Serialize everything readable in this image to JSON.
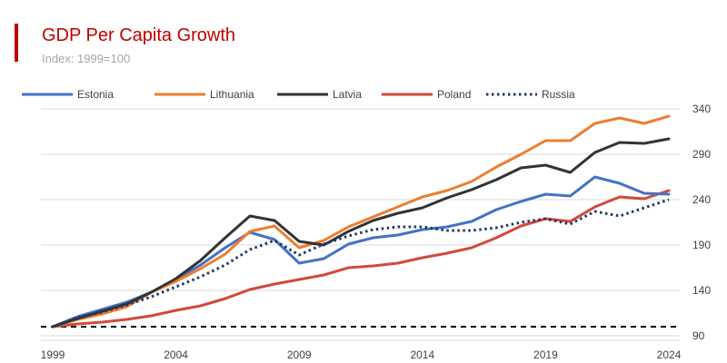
{
  "header": {
    "title": "GDP Per Capita Growth",
    "subtitle": "Index: 1999=100",
    "accent_color": "#c00000"
  },
  "chart_data": {
    "type": "line",
    "title": "GDP Per Capita Growth",
    "subtitle": "Index: 1999=100",
    "xlabel": "",
    "ylabel": "",
    "x": [
      1999,
      2000,
      2001,
      2002,
      2003,
      2004,
      2005,
      2006,
      2007,
      2008,
      2009,
      2010,
      2011,
      2012,
      2013,
      2014,
      2015,
      2016,
      2017,
      2018,
      2019,
      2020,
      2021,
      2022,
      2023,
      2024
    ],
    "xticks": [
      1999,
      2004,
      2009,
      2014,
      2019,
      2024
    ],
    "yticks": [
      90,
      140,
      190,
      240,
      290,
      340
    ],
    "xlim": [
      1999,
      2024
    ],
    "ylim": [
      90,
      350
    ],
    "y_axis_side": "right",
    "grid": "horizontal",
    "legend_position": "top",
    "reference_line": {
      "y": 100,
      "style": "dashed",
      "color": "#000000"
    },
    "series": [
      {
        "name": "Estonia",
        "color": "#4472c4",
        "style": "solid",
        "values": [
          100,
          111,
          119,
          127,
          138,
          152,
          168,
          187,
          204,
          196,
          170,
          175,
          191,
          198,
          201,
          207,
          210,
          216,
          229,
          238,
          246,
          244,
          265,
          258,
          247,
          246
        ]
      },
      {
        "name": "Lithuania",
        "color": "#ed7d31",
        "style": "solid",
        "values": [
          100,
          108,
          114,
          122,
          138,
          150,
          164,
          180,
          205,
          211,
          187,
          195,
          210,
          221,
          232,
          243,
          250,
          260,
          276,
          290,
          305,
          305,
          324,
          330,
          324,
          332
        ]
      },
      {
        "name": "Latvia",
        "color": "#333333",
        "style": "solid",
        "values": [
          100,
          109,
          117,
          125,
          138,
          153,
          173,
          198,
          222,
          217,
          194,
          190,
          205,
          217,
          225,
          231,
          242,
          251,
          262,
          275,
          278,
          270,
          292,
          303,
          302,
          307
        ]
      },
      {
        "name": "Poland",
        "color": "#d04a3b",
        "style": "solid",
        "values": [
          100,
          103,
          105,
          108,
          112,
          118,
          123,
          131,
          141,
          147,
          152,
          157,
          165,
          167,
          170,
          176,
          181,
          187,
          198,
          211,
          219,
          216,
          232,
          243,
          241,
          250
        ]
      },
      {
        "name": "Russia",
        "color": "#1f3864",
        "style": "dotted",
        "values": [
          100,
          110,
          116,
          124,
          133,
          144,
          155,
          168,
          185,
          195,
          179,
          191,
          200,
          207,
          210,
          210,
          206,
          206,
          209,
          215,
          219,
          213,
          227,
          222,
          231,
          240
        ]
      }
    ]
  }
}
